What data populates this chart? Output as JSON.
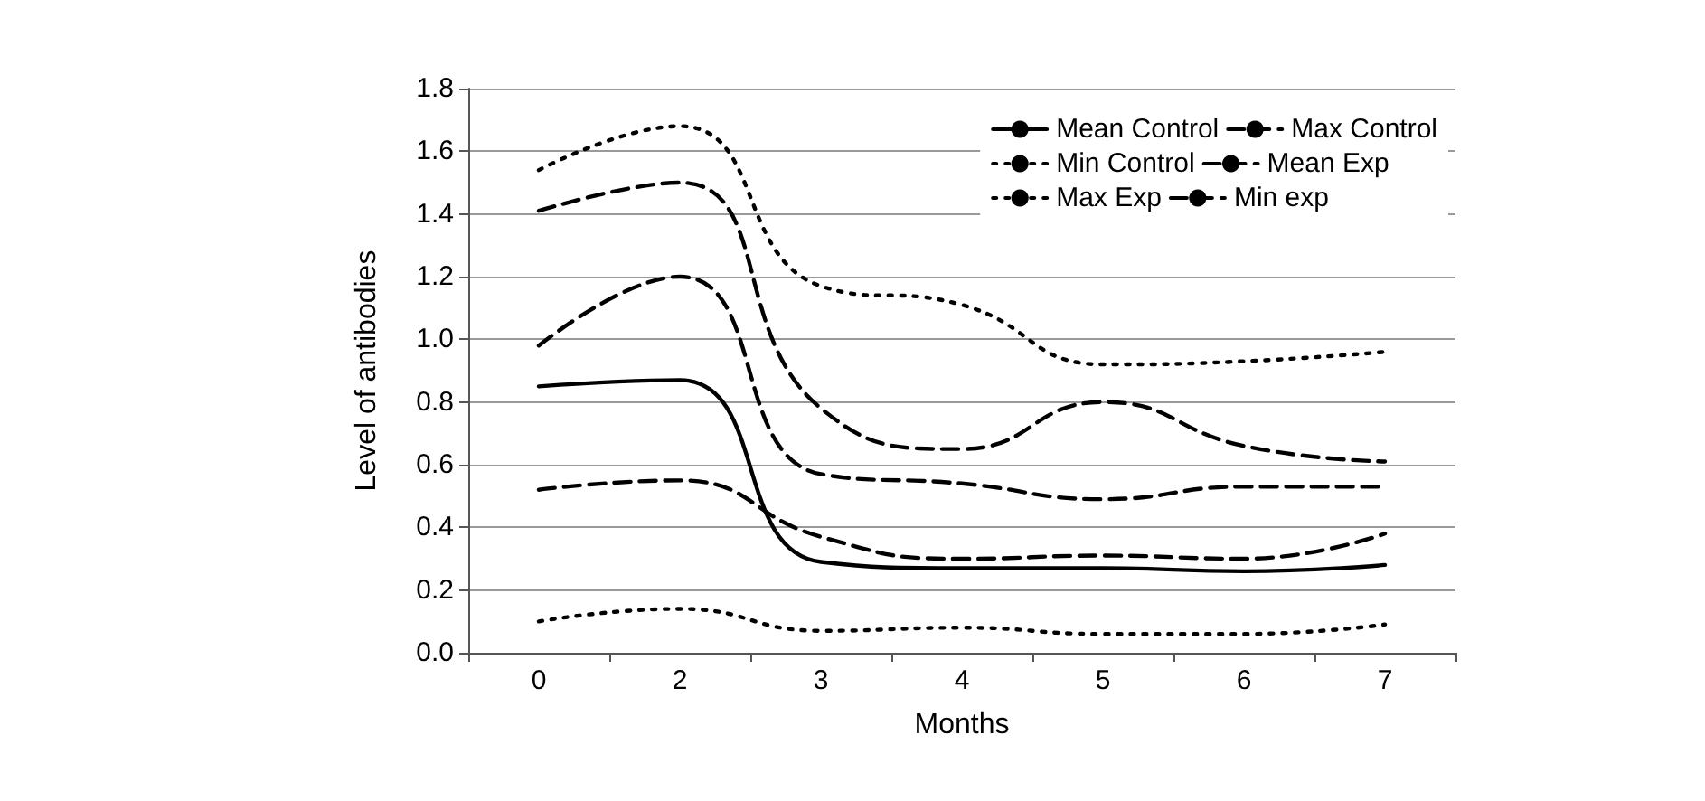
{
  "chart_data": {
    "type": "line",
    "xlabel": "Months",
    "ylabel": "Level of antibodies",
    "categories": [
      "0",
      "2",
      "3",
      "4",
      "5",
      "6",
      "7"
    ],
    "series": [
      {
        "name": "Mean Control",
        "color": "#000000",
        "line_style": "solid",
        "values": [
          0.85,
          0.87,
          0.29,
          0.27,
          0.27,
          0.26,
          0.28
        ]
      },
      {
        "name": "Max Control",
        "color": "#000000",
        "line_style": "dashed",
        "values": [
          1.41,
          1.5,
          0.78,
          0.65,
          0.8,
          0.66,
          0.61
        ]
      },
      {
        "name": "Min Control",
        "color": "#000000",
        "line_style": "dotted",
        "values": [
          0.1,
          0.14,
          0.07,
          0.08,
          0.06,
          0.06,
          0.09
        ]
      },
      {
        "name": "Mean Exp",
        "color": "#000000",
        "line_style": "dashed",
        "values": [
          0.98,
          1.2,
          0.57,
          0.54,
          0.49,
          0.53,
          0.53
        ]
      },
      {
        "name": "Max Exp",
        "color": "#000000",
        "line_style": "dotted",
        "values": [
          1.54,
          1.68,
          1.17,
          1.11,
          0.92,
          0.93,
          0.96
        ]
      },
      {
        "name": "Min exp",
        "color": "#000000",
        "line_style": "dashed",
        "values": [
          0.52,
          0.55,
          0.37,
          0.3,
          0.31,
          0.3,
          0.38
        ]
      }
    ],
    "ylim": [
      0,
      1.8
    ],
    "yticks": [
      {
        "value": 0,
        "label": "0.0"
      },
      0.2,
      0.4,
      0.6,
      0.8,
      {
        "value": 1,
        "label": "1.0"
      },
      1.2,
      1.4,
      1.6,
      1.8
    ],
    "grid": "y",
    "legend": "top right",
    "marker": "none"
  }
}
